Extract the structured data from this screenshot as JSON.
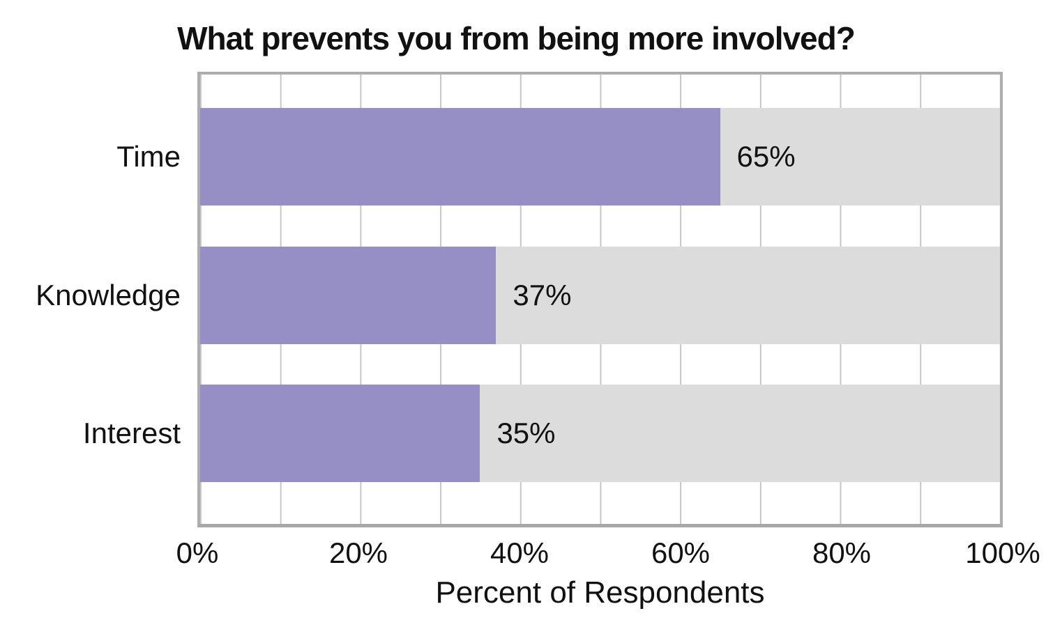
{
  "chart_data": {
    "type": "bar",
    "orientation": "horizontal",
    "title": "What prevents you from being more involved?",
    "xlabel": "Percent of Respondents",
    "categories": [
      "Time",
      "Knowledge",
      "Interest"
    ],
    "values": [
      65,
      37,
      35
    ],
    "value_labels": [
      "65%",
      "37%",
      "35%"
    ],
    "xlim": [
      0,
      100
    ],
    "x_ticks": [
      "0%",
      "20%",
      "40%",
      "60%",
      "80%",
      "100%"
    ],
    "grid": "vertical gridlines every 10%, drawn under bars",
    "legend": "none",
    "colors": {
      "bar_fill": "#968fc5",
      "bar_track": "#dcdcdc",
      "plot_border": "#aeaeae",
      "gridline": "#c6c6c6",
      "text": "#111111",
      "background": "#ffffff"
    }
  }
}
